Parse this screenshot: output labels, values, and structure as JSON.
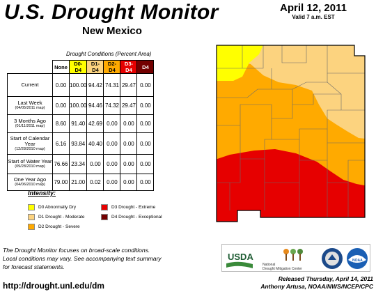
{
  "header": {
    "title": "U.S. Drought Monitor",
    "state": "New Mexico",
    "date": "April 12, 2011",
    "valid": "Valid 7 a.m. EST"
  },
  "table": {
    "caption": "Drought Conditions (Percent Area)",
    "columns": [
      "None",
      "D0-D4",
      "D1-D4",
      "D2-D4",
      "D3-D4",
      "D4"
    ],
    "column_colors": [
      "#ffffff",
      "#ffff00",
      "#fcd37f",
      "#ffaa00",
      "#e60000",
      "#730000"
    ],
    "rows": [
      {
        "label": "Current",
        "sub": "",
        "values": [
          "0.00",
          "100.00",
          "94.42",
          "74.31",
          "29.47",
          "0.00"
        ]
      },
      {
        "label": "Last Week",
        "sub": "(04/05/2011 map)",
        "values": [
          "0.00",
          "100.00",
          "94.46",
          "74.32",
          "29.47",
          "0.00"
        ]
      },
      {
        "label": "3 Months Ago",
        "sub": "(01/11/2011 map)",
        "values": [
          "8.60",
          "91.40",
          "42.69",
          "0.00",
          "0.00",
          "0.00"
        ]
      },
      {
        "label": "Start of Calendar Year",
        "sub": "(12/28/2010 map)",
        "values": [
          "6.16",
          "93.84",
          "40.40",
          "0.00",
          "0.00",
          "0.00"
        ]
      },
      {
        "label": "Start of Water Year",
        "sub": "(09/28/2010 map)",
        "values": [
          "76.66",
          "23.34",
          "0.00",
          "0.00",
          "0.00",
          "0.00"
        ]
      },
      {
        "label": "One Year Ago",
        "sub": "(04/06/2010 map)",
        "values": [
          "79.00",
          "21.00",
          "0.02",
          "0.00",
          "0.00",
          "0.00"
        ]
      }
    ]
  },
  "legend": {
    "title": "Intensity:",
    "items": [
      {
        "label": "D0 Abnormally Dry",
        "color": "#ffff00"
      },
      {
        "label": "D1 Drought - Moderate",
        "color": "#fcd37f"
      },
      {
        "label": "D2 Drought - Severe",
        "color": "#ffaa00"
      },
      {
        "label": "D3 Drought - Extreme",
        "color": "#e60000"
      },
      {
        "label": "D4 Drought - Exceptional",
        "color": "#730000"
      }
    ]
  },
  "note": {
    "line1": "The Drought Monitor focuses on broad-scale conditions.",
    "line2": "Local conditions may vary. See accompanying text summary",
    "line3": "for forecast statements."
  },
  "footer": {
    "url": "http://drought.unl.edu/dm",
    "released": "Released Thursday, April 14, 2011",
    "author": "Anthony Artusa, NOAA/NWS/NCEP/CPC"
  },
  "logos": {
    "usda": "USDA",
    "ndmc_line1": "National",
    "ndmc_line2": "Drought Mitigation Center",
    "noaa": "NOAA"
  },
  "map": {
    "colors": {
      "d0": "#ffff00",
      "d1": "#fcd37f",
      "d2": "#ffaa00",
      "d3": "#e60000",
      "county_line": "#6b6b6b",
      "state_line": "#000000"
    }
  }
}
